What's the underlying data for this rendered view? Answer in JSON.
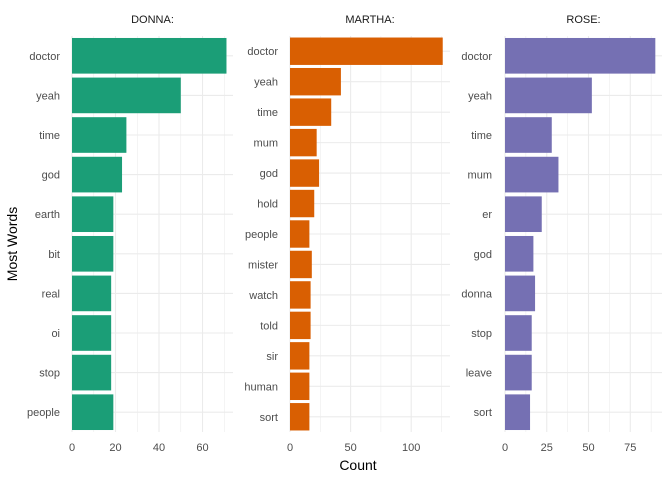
{
  "figure": {
    "xlabel": "Count",
    "ylabel": "Most Words"
  },
  "chart_data": [
    {
      "type": "bar",
      "orientation": "horizontal",
      "title": "DONNA:",
      "color": "#1B9E77",
      "categories": [
        "doctor",
        "yeah",
        "time",
        "god",
        "earth",
        "bit",
        "real",
        "oi",
        "stop",
        "people"
      ],
      "values": [
        71,
        50,
        25,
        23,
        19,
        19,
        18,
        18,
        18,
        19
      ],
      "xlim": [
        0,
        74
      ],
      "xticks": [
        0,
        20,
        40,
        60
      ],
      "xlabel": "Count",
      "ylabel": "Most Words"
    },
    {
      "type": "bar",
      "orientation": "horizontal",
      "title": "MARTHA:",
      "color": "#D95F02",
      "categories": [
        "doctor",
        "yeah",
        "time",
        "mum",
        "god",
        "hold",
        "people",
        "mister",
        "watch",
        "told",
        "sir",
        "human",
        "sort"
      ],
      "values": [
        126,
        42,
        34,
        22,
        24,
        20,
        16,
        18,
        17,
        17,
        16,
        16,
        16
      ],
      "xlim": [
        0,
        132
      ],
      "xticks": [
        0,
        50,
        100
      ],
      "xlabel": "Count",
      "ylabel": "Most Words"
    },
    {
      "type": "bar",
      "orientation": "horizontal",
      "title": "ROSE:",
      "color": "#7570B3",
      "categories": [
        "doctor",
        "yeah",
        "time",
        "mum",
        "er",
        "god",
        "donna",
        "stop",
        "leave",
        "sort"
      ],
      "values": [
        90,
        52,
        28,
        32,
        22,
        17,
        18,
        16,
        16,
        15
      ],
      "xlim": [
        0,
        94
      ],
      "xticks": [
        0,
        25,
        50,
        75
      ],
      "xlabel": "Count",
      "ylabel": "Most Words"
    }
  ]
}
